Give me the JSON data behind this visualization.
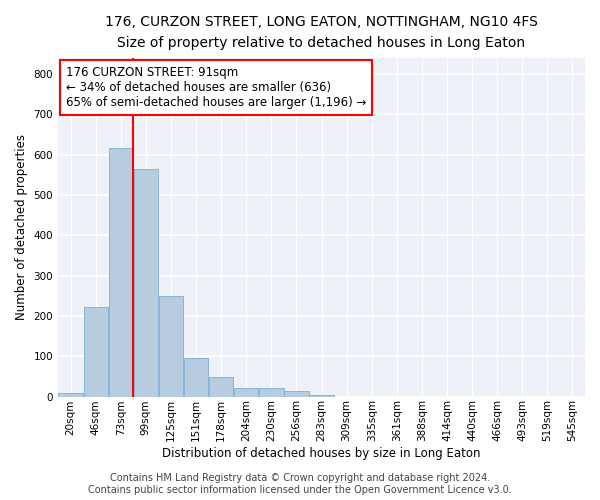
{
  "title_line1": "176, CURZON STREET, LONG EATON, NOTTINGHAM, NG10 4FS",
  "title_line2": "Size of property relative to detached houses in Long Eaton",
  "xlabel": "Distribution of detached houses by size in Long Eaton",
  "ylabel": "Number of detached properties",
  "bar_color": "#b8ccdf",
  "bar_edge_color": "#7aafd4",
  "categories": [
    "20sqm",
    "46sqm",
    "73sqm",
    "99sqm",
    "125sqm",
    "151sqm",
    "178sqm",
    "204sqm",
    "230sqm",
    "256sqm",
    "283sqm",
    "309sqm",
    "335sqm",
    "361sqm",
    "388sqm",
    "414sqm",
    "440sqm",
    "466sqm",
    "493sqm",
    "519sqm",
    "545sqm"
  ],
  "values": [
    10,
    222,
    617,
    565,
    249,
    95,
    49,
    22,
    22,
    13,
    5,
    0,
    0,
    0,
    0,
    0,
    0,
    0,
    0,
    0,
    0
  ],
  "ylim": [
    0,
    840
  ],
  "yticks": [
    0,
    100,
    200,
    300,
    400,
    500,
    600,
    700,
    800
  ],
  "vline_x": 2.5,
  "annotation_text": "176 CURZON STREET: 91sqm\n← 34% of detached houses are smaller (636)\n65% of semi-detached houses are larger (1,196) →",
  "footer_line1": "Contains HM Land Registry data © Crown copyright and database right 2024.",
  "footer_line2": "Contains public sector information licensed under the Open Government Licence v3.0.",
  "background_color": "#eef2f8",
  "grid_color": "#ffffff",
  "title_fontsize": 10,
  "subtitle_fontsize": 9,
  "axis_label_fontsize": 8.5,
  "tick_fontsize": 7.5,
  "annotation_fontsize": 8.5,
  "footer_fontsize": 7
}
